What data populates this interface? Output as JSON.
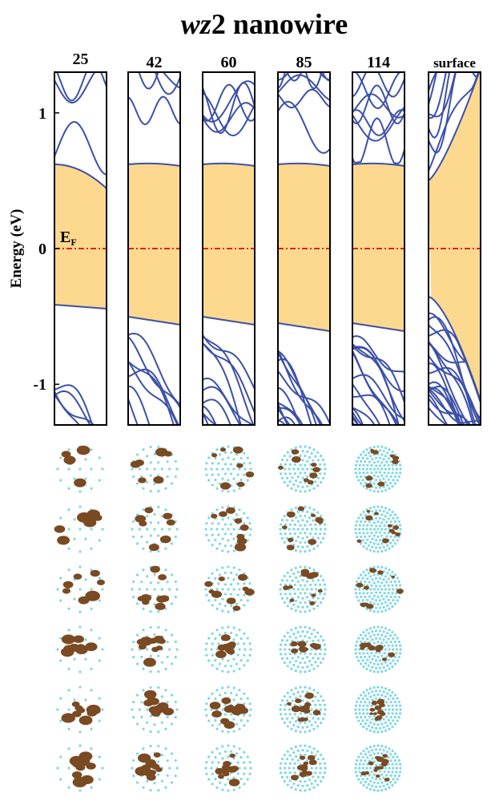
{
  "figure": {
    "title": {
      "italic": "wz",
      "rest": "2 nanowire"
    },
    "y_axis_label": "Energy (eV)",
    "fermi_label": {
      "main": "E",
      "sub": "F"
    },
    "fermi_energy": 0,
    "ylim": [
      -1.3,
      1.3
    ],
    "yticks": [
      1,
      0,
      -1
    ],
    "panels": [
      "25",
      "42",
      "60",
      "85",
      "114",
      "surface"
    ]
  }
}
